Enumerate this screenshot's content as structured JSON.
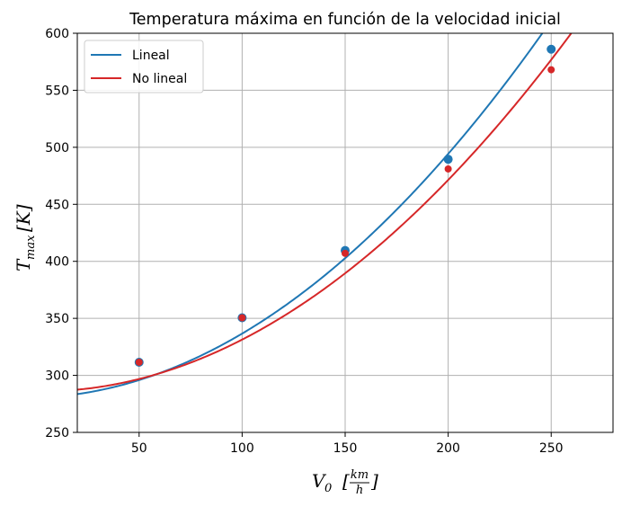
{
  "chart_data": {
    "type": "line",
    "title": "Temperatura máxima en función de la velocidad inicial",
    "xlabel": {
      "main": "V",
      "sub": "0",
      "num": "km",
      "den": "h"
    },
    "ylabel": {
      "main": "T",
      "sub": "max",
      "unit": "[K]"
    },
    "xlim": [
      20,
      280
    ],
    "ylim": [
      250,
      600
    ],
    "xticks": [
      50,
      100,
      150,
      200,
      250
    ],
    "yticks": [
      250,
      300,
      350,
      400,
      450,
      500,
      550,
      600
    ],
    "grid": true,
    "legend_position": "top-left",
    "series": [
      {
        "name": "Lineal",
        "color": "#1f77b4",
        "points": [
          [
            50,
            311.5
          ],
          [
            100,
            350.5
          ],
          [
            150,
            409.5
          ],
          [
            200,
            489.5
          ],
          [
            250,
            586
          ]
        ],
        "curve": {
          "x_start": 20,
          "x_end": 256,
          "coeffs": [
            280.45,
            0.055,
            0.00507
          ]
        }
      },
      {
        "name": "No lineal",
        "color": "#d62728",
        "points": [
          [
            50,
            311.5
          ],
          [
            100,
            350.5
          ],
          [
            150,
            407
          ],
          [
            200,
            481
          ],
          [
            250,
            568
          ]
        ],
        "curve": {
          "x_start": 20,
          "x_end": 266,
          "coeffs": [
            285.9,
            -0.0178,
            0.004725
          ]
        }
      }
    ]
  }
}
